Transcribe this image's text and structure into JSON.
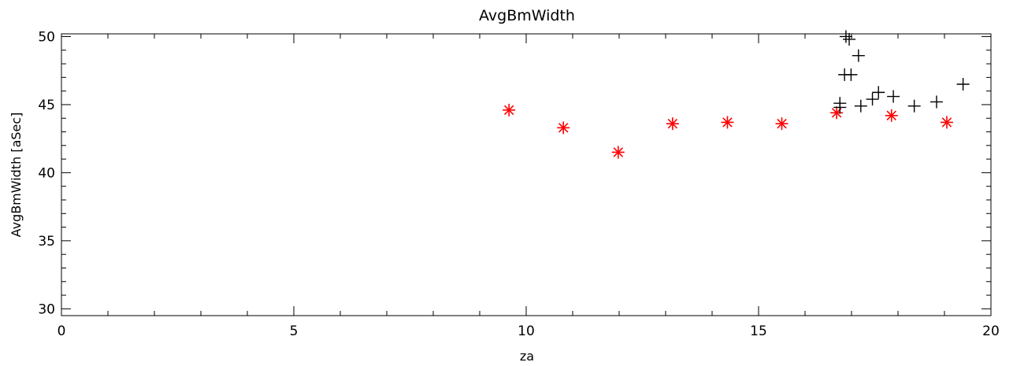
{
  "chart_data": {
    "type": "scatter",
    "title": "AvgBmWidth",
    "xlabel": "za",
    "ylabel": "AvgBmWidth [aSec]",
    "xlim": [
      0,
      20
    ],
    "ylim": [
      29.5,
      50.2
    ],
    "xticks": [
      0,
      5,
      10,
      15,
      20
    ],
    "xtick_labels": [
      "0",
      "5",
      "10",
      "15",
      "20"
    ],
    "yticks": [
      30,
      35,
      40,
      45,
      50
    ],
    "ytick_labels": [
      "30",
      "35",
      "40",
      "45",
      "50"
    ],
    "grid": false,
    "series": [
      {
        "marker": "asterisk",
        "color": "#ff0000",
        "points": [
          [
            9.63,
            44.6
          ],
          [
            10.8,
            43.3
          ],
          [
            11.98,
            41.5
          ],
          [
            13.15,
            43.6
          ],
          [
            14.33,
            43.7
          ],
          [
            15.5,
            43.6
          ],
          [
            16.68,
            44.4
          ],
          [
            17.86,
            44.2
          ],
          [
            19.05,
            43.7
          ]
        ]
      },
      {
        "marker": "plus",
        "color": "#000000",
        "points": [
          [
            16.75,
            45.1
          ],
          [
            16.75,
            44.8
          ],
          [
            16.85,
            47.2
          ],
          [
            16.88,
            50.0
          ],
          [
            16.95,
            49.8
          ],
          [
            16.99,
            47.2
          ],
          [
            17.15,
            48.6
          ],
          [
            17.2,
            44.9
          ],
          [
            17.45,
            45.4
          ],
          [
            17.58,
            45.9
          ],
          [
            17.9,
            45.6
          ],
          [
            18.35,
            44.9
          ],
          [
            18.83,
            45.2
          ],
          [
            19.4,
            46.5
          ]
        ]
      }
    ]
  }
}
